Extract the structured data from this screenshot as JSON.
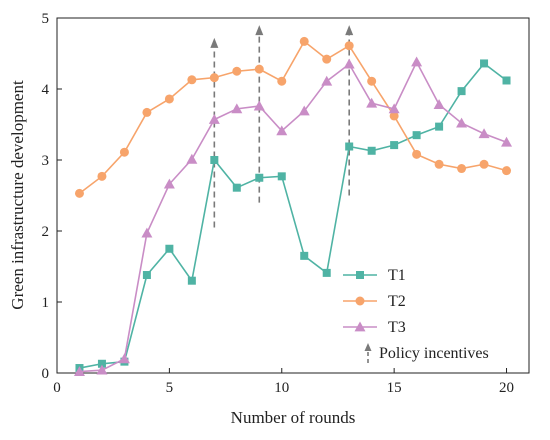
{
  "chart_data": {
    "type": "line",
    "xlabel": "Number of rounds",
    "ylabel": "Green infrastructure development",
    "xlim": [
      0,
      21
    ],
    "ylim": [
      0,
      5
    ],
    "xticks": [
      0,
      5,
      10,
      15,
      20
    ],
    "yticks": [
      0,
      1,
      2,
      3,
      4,
      5
    ],
    "grid": false,
    "legend_position": "bottom-right",
    "x": [
      1,
      2,
      3,
      4,
      5,
      6,
      7,
      8,
      9,
      10,
      11,
      12,
      13,
      14,
      15,
      16,
      17,
      18,
      19,
      20
    ],
    "series": [
      {
        "name": "T1",
        "color": "#4fb3a4",
        "marker": "square",
        "values": [
          0.07,
          0.13,
          0.16,
          1.38,
          1.75,
          1.3,
          3.0,
          2.61,
          2.75,
          2.77,
          1.65,
          1.41,
          3.19,
          3.13,
          3.21,
          3.35,
          3.47,
          3.97,
          4.36,
          4.12
        ]
      },
      {
        "name": "T2",
        "color": "#f7a46b",
        "marker": "circle",
        "values": [
          2.53,
          2.77,
          3.11,
          3.67,
          3.86,
          4.13,
          4.16,
          4.25,
          4.28,
          4.11,
          4.67,
          4.42,
          4.61,
          4.11,
          3.62,
          3.08,
          2.94,
          2.88,
          2.94,
          2.85
        ]
      },
      {
        "name": "T3",
        "color": "#c98dc6",
        "marker": "triangle",
        "values": [
          0.02,
          0.04,
          0.2,
          1.97,
          2.66,
          3.01,
          3.57,
          3.72,
          3.76,
          3.41,
          3.69,
          4.11,
          4.35,
          3.8,
          3.72,
          4.38,
          3.78,
          3.52,
          3.37,
          3.25
        ]
      }
    ],
    "annotations": [
      {
        "type": "dashed-arrow",
        "x": 7,
        "y_from": 2.05,
        "y_to": 4.72,
        "color": "#7a7a7a"
      },
      {
        "type": "dashed-arrow",
        "x": 9,
        "y_from": 2.4,
        "y_to": 4.9,
        "color": "#7a7a7a"
      },
      {
        "type": "dashed-arrow",
        "x": 13,
        "y_from": 2.5,
        "y_to": 4.9,
        "color": "#7a7a7a"
      }
    ],
    "legend": [
      {
        "label": "T1",
        "kind": "series"
      },
      {
        "label": "T2",
        "kind": "series"
      },
      {
        "label": "T3",
        "kind": "series"
      },
      {
        "label": "Policy incentives",
        "kind": "arrow",
        "color": "#7a7a7a"
      }
    ]
  }
}
